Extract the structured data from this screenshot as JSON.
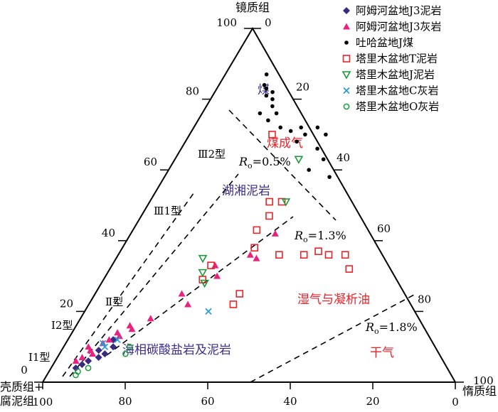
{
  "chart_data": {
    "type": "ternary-scatter",
    "vertices": {
      "top": "镜质组",
      "left": [
        "壳质组+",
        "腐泥组"
      ],
      "right": "惰质组"
    },
    "ticks": {
      "vitrinite": [
        "0",
        "20",
        "40",
        "60",
        "80",
        "100"
      ],
      "inertinite": [
        "0",
        "20",
        "40",
        "60",
        "80",
        "100"
      ],
      "exinite": [
        "0",
        "20",
        "40",
        "60",
        "80",
        "100"
      ]
    },
    "kerogen_types": [
      "Ⅲ2型",
      "Ⅲ1型",
      "Ⅱ型",
      "Ⅰ2型",
      "Ⅰ1型"
    ],
    "regions": [
      {
        "label": "煤",
        "color": "#3a2d8c"
      },
      {
        "label": "煤成气",
        "color": "#e8232a"
      },
      {
        "label": "湖湘泥岩",
        "color": "#3a2d8c"
      },
      {
        "label": "湿气与凝析油",
        "color": "#e8232a"
      },
      {
        "label": "干气",
        "color": "#e8232a"
      },
      {
        "label": "海相碳酸盐岩及泥岩",
        "color": "#3a2d8c"
      }
    ],
    "ro_lines": [
      {
        "label": "Ro=0.5%",
        "symbol": "R",
        "sub": "o",
        "value": "=0.5%"
      },
      {
        "label": "Ro=1.3%",
        "symbol": "R",
        "sub": "o",
        "value": "=1.3%"
      },
      {
        "label": "Ro=1.8%",
        "symbol": "R",
        "sub": "o",
        "value": "=1.8%"
      }
    ],
    "series": [
      {
        "name": "阿姆河盆地J3泥岩",
        "marker": "diamond",
        "color": "#3b2a82",
        "points": [
          [
            4,
            6
          ],
          [
            5,
            7
          ],
          [
            6,
            8
          ],
          [
            7,
            10
          ],
          [
            9,
            9
          ],
          [
            8,
            11
          ],
          [
            10,
            12
          ],
          [
            12,
            11
          ]
        ]
      },
      {
        "name": "阿姆河盆地J3灰岩",
        "marker": "triangle",
        "color": "#e8237f",
        "points": [
          [
            6,
            5
          ],
          [
            7,
            6
          ],
          [
            8,
            8
          ],
          [
            9,
            7
          ],
          [
            10,
            6
          ],
          [
            11,
            9
          ],
          [
            12,
            10
          ],
          [
            13,
            12
          ],
          [
            14,
            11
          ],
          [
            15,
            14
          ],
          [
            16,
            13
          ],
          [
            18,
            17
          ],
          [
            22,
            24
          ],
          [
            25,
            21
          ],
          [
            30,
            27
          ],
          [
            33,
            25
          ],
          [
            35,
            34
          ],
          [
            36,
            32
          ],
          [
            42,
            35
          ]
        ]
      },
      {
        "name": "吐哈盆地J煤",
        "marker": "dot",
        "color": "#000000",
        "points": [
          [
            87,
            10
          ],
          [
            84,
            11
          ],
          [
            83,
            12
          ],
          [
            82,
            14
          ],
          [
            81,
            13
          ],
          [
            80,
            15
          ],
          [
            78,
            16
          ],
          [
            76,
            14
          ],
          [
            74,
            17
          ],
          [
            76,
            18
          ],
          [
            72,
            21
          ],
          [
            71,
            24
          ],
          [
            72,
            26
          ],
          [
            70,
            28
          ],
          [
            68,
            27
          ],
          [
            72,
            30
          ],
          [
            70,
            33
          ],
          [
            66,
            33
          ],
          [
            63,
            36
          ],
          [
            60,
            34
          ],
          [
            58,
            40
          ]
        ]
      },
      {
        "name": "塔里木盆地T泥岩",
        "marker": "square",
        "color": "#e8232a",
        "points": [
          [
            70,
            20
          ],
          [
            51,
            29
          ],
          [
            51,
            32
          ],
          [
            47,
            31
          ],
          [
            43,
            30
          ],
          [
            38,
            32
          ],
          [
            36,
            39
          ],
          [
            36,
            45
          ],
          [
            37,
            48
          ],
          [
            36,
            51
          ],
          [
            36,
            55
          ],
          [
            32,
            58
          ],
          [
            33,
            24
          ],
          [
            29,
            24
          ],
          [
            25,
            35
          ],
          [
            22,
            35
          ]
        ]
      },
      {
        "name": "塔里木盆地J泥岩",
        "marker": "tri-down",
        "color": "#1a9a3a",
        "points": [
          [
            63,
            30
          ],
          [
            51,
            33
          ],
          [
            35,
            21
          ],
          [
            31,
            23
          ],
          [
            28,
            25
          ]
        ]
      },
      {
        "name": "塔里木盆地C灰岩",
        "marker": "cross",
        "color": "#2a9ad8",
        "points": [
          [
            20,
            30
          ],
          [
            10,
            10
          ],
          [
            12,
            12
          ],
          [
            11,
            9
          ]
        ]
      },
      {
        "name": "塔里木盆地O灰岩",
        "marker": "circle",
        "color": "#1a9a3a",
        "points": [
          [
            10,
            16
          ],
          [
            8,
            16
          ],
          [
            3,
            7
          ],
          [
            4,
            9
          ],
          [
            2,
            7
          ]
        ]
      }
    ]
  }
}
